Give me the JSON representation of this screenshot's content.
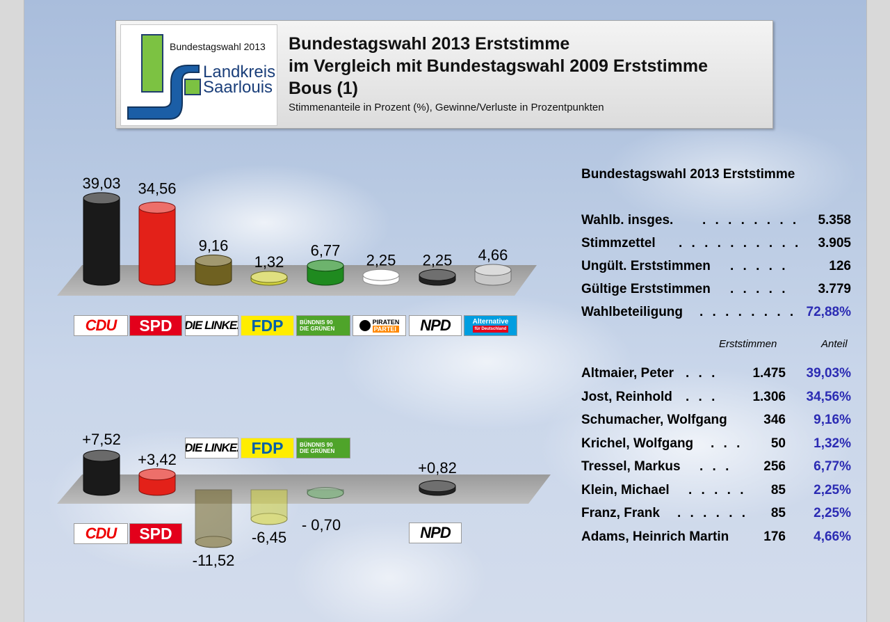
{
  "header": {
    "logo_text_top": "Bundestagswahl 2013",
    "logo_text_1": "Landkreis",
    "logo_text_2": "Saarlouis",
    "title_lines": [
      "Bundestagswahl 2013 Erststimme",
      "im Vergleich mit Bundestagswahl 2009 Erststimme",
      "Bous (1)"
    ],
    "subtitle": "Stimmenanteile in Prozent (%), Gewinne/Verluste in Prozentpunkten"
  },
  "chart_data": [
    {
      "type": "bar",
      "categories": [
        "CDU",
        "SPD",
        "DIE LINKE.",
        "FDP",
        "BÜNDNIS 90 DIE GRÜNEN",
        "PIRATEN PARTEI",
        "NPD",
        "Alternative für Deutschland"
      ],
      "values": [
        39.03,
        34.56,
        9.16,
        1.32,
        6.77,
        2.25,
        2.25,
        4.66
      ],
      "labels": [
        "39,03",
        "34,56",
        "9,16",
        "1,32",
        "6,77",
        "2,25",
        "2,25",
        "4,66"
      ],
      "colors": [
        "#1a1a1a",
        "#e32119",
        "#6f6121",
        "#cfcf3c",
        "#1f8a1f",
        "#ffffff",
        "#222222",
        "#c8c8c8"
      ]
    },
    {
      "type": "bar",
      "categories": [
        "CDU",
        "SPD",
        "DIE LINKE.",
        "FDP",
        "BÜNDNIS 90 DIE GRÜNEN",
        "NPD"
      ],
      "values": [
        7.52,
        3.42,
        -11.52,
        -6.45,
        -0.7,
        0.82
      ],
      "labels": [
        "+7,52",
        "+3,42",
        "-11,52",
        "-6,45",
        "- 0,70",
        "+0,82"
      ],
      "colors": [
        "#1a1a1a",
        "#e32119",
        "#6f6121",
        "#cfcf3c",
        "#5e9e5e",
        "#222222"
      ]
    }
  ],
  "logos": {
    "cdu": "CDU",
    "spd": "SPD",
    "linke": "DIE LINKE.",
    "fdp": "FDP",
    "gruene_1": "BÜNDNIS 90",
    "gruene_2": "DIE GRÜNEN",
    "piraten_1": "PIRATEN",
    "piraten_2": "PARTEI",
    "npd": "NPD",
    "afd_1": "Alternative",
    "afd_2": "für Deutschland"
  },
  "stats": {
    "title": "Bundestagswahl 2013 Erststimme",
    "rows": [
      {
        "label": "Wahlb. insges.",
        "dots": ". . . . . . . .",
        "value": "5.358"
      },
      {
        "label": "Stimmzettel",
        "dots": ". . . . . . . . . .",
        "value": "3.905"
      },
      {
        "label": "Ungült. Erststimmen",
        "dots": ". . . . .",
        "value": "126"
      },
      {
        "label": "Gültige Erststimmen",
        "dots": ". . . . .",
        "value": "3.779"
      },
      {
        "label": "Wahlbeteiligung",
        "dots": ". . . . . . . .",
        "value": "72,88%"
      }
    ]
  },
  "candidates": {
    "col_votes": "Erststimmen",
    "col_share": "Anteil",
    "rows": [
      {
        "name": "Altmaier, Peter",
        "dots": ". . .",
        "votes": "1.475",
        "pct": "39,03%"
      },
      {
        "name": "Jost, Reinhold",
        "dots": ". . .",
        "votes": "1.306",
        "pct": "34,56%"
      },
      {
        "name": "Schumacher, Wolfgang",
        "dots": "",
        "votes": "346",
        "pct": "9,16%"
      },
      {
        "name": "Krichel, Wolfgang",
        "dots": ". . .",
        "votes": "50",
        "pct": "1,32%"
      },
      {
        "name": "Tressel, Markus",
        "dots": ". . .",
        "votes": "256",
        "pct": "6,77%"
      },
      {
        "name": "Klein, Michael",
        "dots": ". . . . .",
        "votes": "85",
        "pct": "2,25%"
      },
      {
        "name": "Franz, Frank",
        "dots": ". . . . . .",
        "votes": "85",
        "pct": "2,25%"
      },
      {
        "name": "Adams, Heinrich Martin",
        "dots": "",
        "votes": "176",
        "pct": "4,66%"
      }
    ]
  }
}
